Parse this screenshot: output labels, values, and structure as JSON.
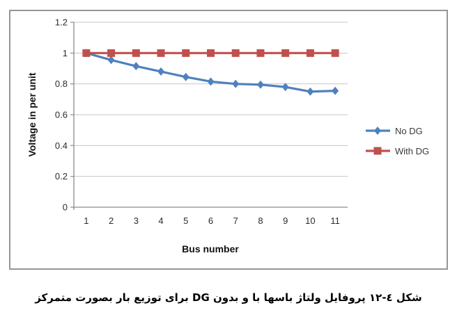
{
  "chart_data": {
    "type": "line",
    "title": "",
    "categories": [
      "1",
      "2",
      "3",
      "4",
      "5",
      "6",
      "7",
      "8",
      "9",
      "10",
      "11"
    ],
    "xlabel": "Bus number",
    "ylabel": "Voltage in per unit",
    "ylim": [
      0,
      1.2
    ],
    "yticks": [
      0,
      0.2,
      0.4,
      0.6,
      0.8,
      1,
      1.2
    ],
    "ytick_labels": [
      "0",
      "0.2",
      "0.4",
      "0.6",
      "0.8",
      "1",
      "1.2"
    ],
    "grid": true,
    "legend_position": "right-outside",
    "series": [
      {
        "name": "No DG",
        "color": "#4F81BD",
        "marker": "diamond",
        "values": [
          1,
          0.955,
          0.915,
          0.88,
          0.845,
          0.815,
          0.8,
          0.795,
          0.78,
          0.75,
          0.755
        ]
      },
      {
        "name": "With DG",
        "color": "#C0504D",
        "marker": "square",
        "values": [
          1,
          1,
          1,
          1,
          1,
          1,
          1,
          1,
          1,
          1,
          1
        ]
      }
    ]
  },
  "caption": "شکل ٤-١٢ پروفایل ولتاژ باسها با و بدون DG برای توزیع بار بصورت متمرکز",
  "colors": {
    "axis": "#8a8a8a",
    "gridline": "#c6c6c6",
    "frame_border": "#969696",
    "tick_text": "#2b2b2b"
  }
}
